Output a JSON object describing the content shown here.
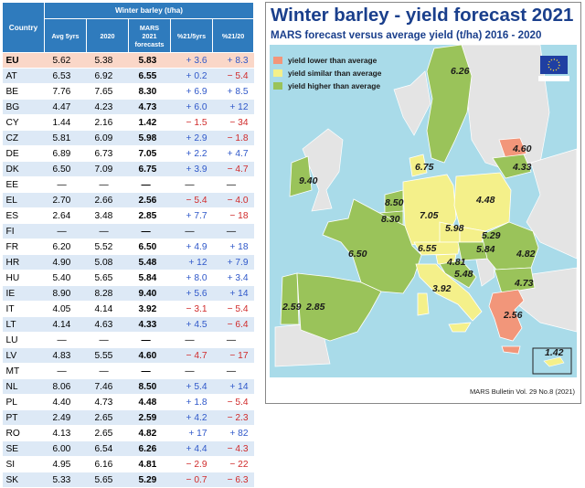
{
  "table": {
    "header_country": "Country",
    "header_group": "Winter barley (t/ha)",
    "columns": [
      "Avg 5yrs",
      "2020",
      "MARS 2021 forecasts",
      "%21/5yrs",
      "%21/20"
    ],
    "rows": [
      {
        "country": "EU",
        "avg5": "5.62",
        "y2020": "5.38",
        "fc": "5.83",
        "p5": "+ 3.6",
        "p20": "+ 8.3"
      },
      {
        "country": "AT",
        "avg5": "6.53",
        "y2020": "6.92",
        "fc": "6.55",
        "p5": "+ 0.2",
        "p20": "− 5.4"
      },
      {
        "country": "BE",
        "avg5": "7.76",
        "y2020": "7.65",
        "fc": "8.30",
        "p5": "+ 6.9",
        "p20": "+ 8.5"
      },
      {
        "country": "BG",
        "avg5": "4.47",
        "y2020": "4.23",
        "fc": "4.73",
        "p5": "+ 6.0",
        "p20": "+ 12"
      },
      {
        "country": "CY",
        "avg5": "1.44",
        "y2020": "2.16",
        "fc": "1.42",
        "p5": "− 1.5",
        "p20": "− 34"
      },
      {
        "country": "CZ",
        "avg5": "5.81",
        "y2020": "6.09",
        "fc": "5.98",
        "p5": "+ 2.9",
        "p20": "− 1.8"
      },
      {
        "country": "DE",
        "avg5": "6.89",
        "y2020": "6.73",
        "fc": "7.05",
        "p5": "+ 2.2",
        "p20": "+ 4.7"
      },
      {
        "country": "DK",
        "avg5": "6.50",
        "y2020": "7.09",
        "fc": "6.75",
        "p5": "+ 3.9",
        "p20": "− 4.7"
      },
      {
        "country": "EE",
        "avg5": "—",
        "y2020": "—",
        "fc": "—",
        "p5": "—",
        "p20": "—"
      },
      {
        "country": "EL",
        "avg5": "2.70",
        "y2020": "2.66",
        "fc": "2.56",
        "p5": "− 5.4",
        "p20": "− 4.0"
      },
      {
        "country": "ES",
        "avg5": "2.64",
        "y2020": "3.48",
        "fc": "2.85",
        "p5": "+ 7.7",
        "p20": "− 18"
      },
      {
        "country": "FI",
        "avg5": "—",
        "y2020": "—",
        "fc": "—",
        "p5": "—",
        "p20": "—"
      },
      {
        "country": "FR",
        "avg5": "6.20",
        "y2020": "5.52",
        "fc": "6.50",
        "p5": "+ 4.9",
        "p20": "+ 18"
      },
      {
        "country": "HR",
        "avg5": "4.90",
        "y2020": "5.08",
        "fc": "5.48",
        "p5": "+ 12",
        "p20": "+ 7.9"
      },
      {
        "country": "HU",
        "avg5": "5.40",
        "y2020": "5.65",
        "fc": "5.84",
        "p5": "+ 8.0",
        "p20": "+ 3.4"
      },
      {
        "country": "IE",
        "avg5": "8.90",
        "y2020": "8.28",
        "fc": "9.40",
        "p5": "+ 5.6",
        "p20": "+ 14"
      },
      {
        "country": "IT",
        "avg5": "4.05",
        "y2020": "4.14",
        "fc": "3.92",
        "p5": "− 3.1",
        "p20": "− 5.4"
      },
      {
        "country": "LT",
        "avg5": "4.14",
        "y2020": "4.63",
        "fc": "4.33",
        "p5": "+ 4.5",
        "p20": "− 6.4"
      },
      {
        "country": "LU",
        "avg5": "—",
        "y2020": "—",
        "fc": "—",
        "p5": "—",
        "p20": "—"
      },
      {
        "country": "LV",
        "avg5": "4.83",
        "y2020": "5.55",
        "fc": "4.60",
        "p5": "− 4.7",
        "p20": "− 17"
      },
      {
        "country": "MT",
        "avg5": "—",
        "y2020": "—",
        "fc": "—",
        "p5": "—",
        "p20": "—"
      },
      {
        "country": "NL",
        "avg5": "8.06",
        "y2020": "7.46",
        "fc": "8.50",
        "p5": "+ 5.4",
        "p20": "+ 14"
      },
      {
        "country": "PL",
        "avg5": "4.40",
        "y2020": "4.73",
        "fc": "4.48",
        "p5": "+ 1.8",
        "p20": "− 5.4"
      },
      {
        "country": "PT",
        "avg5": "2.49",
        "y2020": "2.65",
        "fc": "2.59",
        "p5": "+ 4.2",
        "p20": "− 2.3"
      },
      {
        "country": "RO",
        "avg5": "4.13",
        "y2020": "2.65",
        "fc": "4.82",
        "p5": "+ 17",
        "p20": "+ 82"
      },
      {
        "country": "SE",
        "avg5": "6.00",
        "y2020": "6.54",
        "fc": "6.26",
        "p5": "+ 4.4",
        "p20": "− 4.3"
      },
      {
        "country": "SI",
        "avg5": "4.95",
        "y2020": "6.16",
        "fc": "4.81",
        "p5": "− 2.9",
        "p20": "− 22"
      },
      {
        "country": "SK",
        "avg5": "5.33",
        "y2020": "5.65",
        "fc": "5.29",
        "p5": "− 0.7",
        "p20": "− 6.3"
      }
    ]
  },
  "map": {
    "title": "Winter barley - yield forecast 2021",
    "subtitle": "MARS forecast versus average yield (t/ha) 2016 - 2020",
    "legend": [
      {
        "label": "yield lower than average",
        "color": "#f2967a"
      },
      {
        "label": "yield similar than average",
        "color": "#f4f08a"
      },
      {
        "label": "yield higher than average",
        "color": "#9ac35a"
      }
    ],
    "background_color": "#a9dbe9",
    "no_data_color": "#e4e4e4",
    "footer": "MARS Bulletin Vol. 29 No.8 (2021)"
  },
  "chart_data": {
    "type": "table",
    "title": "Winter barley (t/ha)",
    "columns": [
      "Country",
      "Avg 5yrs",
      "2020",
      "MARS 2021 forecasts",
      "%21/5yrs",
      "%21/20"
    ],
    "rows": [
      [
        "EU",
        5.62,
        5.38,
        5.83,
        3.6,
        8.3
      ],
      [
        "AT",
        6.53,
        6.92,
        6.55,
        0.2,
        -5.4
      ],
      [
        "BE",
        7.76,
        7.65,
        8.3,
        6.9,
        8.5
      ],
      [
        "BG",
        4.47,
        4.23,
        4.73,
        6.0,
        12
      ],
      [
        "CY",
        1.44,
        2.16,
        1.42,
        -1.5,
        -34
      ],
      [
        "CZ",
        5.81,
        6.09,
        5.98,
        2.9,
        -1.8
      ],
      [
        "DE",
        6.89,
        6.73,
        7.05,
        2.2,
        4.7
      ],
      [
        "DK",
        6.5,
        7.09,
        6.75,
        3.9,
        -4.7
      ],
      [
        "EE",
        null,
        null,
        null,
        null,
        null
      ],
      [
        "EL",
        2.7,
        2.66,
        2.56,
        -5.4,
        -4.0
      ],
      [
        "ES",
        2.64,
        3.48,
        2.85,
        7.7,
        -18
      ],
      [
        "FI",
        null,
        null,
        null,
        null,
        null
      ],
      [
        "FR",
        6.2,
        5.52,
        6.5,
        4.9,
        18
      ],
      [
        "HR",
        4.9,
        5.08,
        5.48,
        12,
        7.9
      ],
      [
        "HU",
        5.4,
        5.65,
        5.84,
        8.0,
        3.4
      ],
      [
        "IE",
        8.9,
        8.28,
        9.4,
        5.6,
        14
      ],
      [
        "IT",
        4.05,
        4.14,
        3.92,
        -3.1,
        -5.4
      ],
      [
        "LT",
        4.14,
        4.63,
        4.33,
        4.5,
        -6.4
      ],
      [
        "LU",
        null,
        null,
        null,
        null,
        null
      ],
      [
        "LV",
        4.83,
        5.55,
        4.6,
        -4.7,
        -17
      ],
      [
        "MT",
        null,
        null,
        null,
        null,
        null
      ],
      [
        "NL",
        8.06,
        7.46,
        8.5,
        5.4,
        14
      ],
      [
        "PL",
        4.4,
        4.73,
        4.48,
        1.8,
        -5.4
      ],
      [
        "PT",
        2.49,
        2.65,
        2.59,
        4.2,
        -2.3
      ],
      [
        "RO",
        4.13,
        2.65,
        4.82,
        17,
        82
      ],
      [
        "SE",
        6.0,
        6.54,
        6.26,
        4.4,
        -4.3
      ],
      [
        "SI",
        4.95,
        6.16,
        4.81,
        -2.9,
        -22
      ],
      [
        "SK",
        5.33,
        5.65,
        5.29,
        -0.7,
        -6.3
      ]
    ],
    "map_values": [
      {
        "country": "SE",
        "value": "6.26",
        "class": "higher"
      },
      {
        "country": "LV",
        "value": "4.60",
        "class": "lower"
      },
      {
        "country": "LT",
        "value": "4.33",
        "class": "higher"
      },
      {
        "country": "DK",
        "value": "6.75",
        "class": "similar"
      },
      {
        "country": "IE",
        "value": "9.40",
        "class": "higher"
      },
      {
        "country": "NL",
        "value": "8.50",
        "class": "higher"
      },
      {
        "country": "BE",
        "value": "8.30",
        "class": "higher"
      },
      {
        "country": "DE",
        "value": "7.05",
        "class": "similar"
      },
      {
        "country": "PL",
        "value": "4.48",
        "class": "similar"
      },
      {
        "country": "CZ",
        "value": "5.98",
        "class": "similar"
      },
      {
        "country": "SK",
        "value": "5.29",
        "class": "similar"
      },
      {
        "country": "AT",
        "value": "6.55",
        "class": "similar"
      },
      {
        "country": "HU",
        "value": "5.84",
        "class": "higher"
      },
      {
        "country": "SI",
        "value": "4.81",
        "class": "similar"
      },
      {
        "country": "HR",
        "value": "5.48",
        "class": "higher"
      },
      {
        "country": "FR",
        "value": "6.50",
        "class": "higher"
      },
      {
        "country": "RO",
        "value": "4.82",
        "class": "higher"
      },
      {
        "country": "BG",
        "value": "4.73",
        "class": "higher"
      },
      {
        "country": "IT",
        "value": "3.92",
        "class": "similar"
      },
      {
        "country": "PT",
        "value": "2.59",
        "class": "higher"
      },
      {
        "country": "ES",
        "value": "2.85",
        "class": "higher"
      },
      {
        "country": "EL",
        "value": "2.56",
        "class": "lower"
      },
      {
        "country": "CY",
        "value": "1.42",
        "class": "similar"
      }
    ]
  }
}
